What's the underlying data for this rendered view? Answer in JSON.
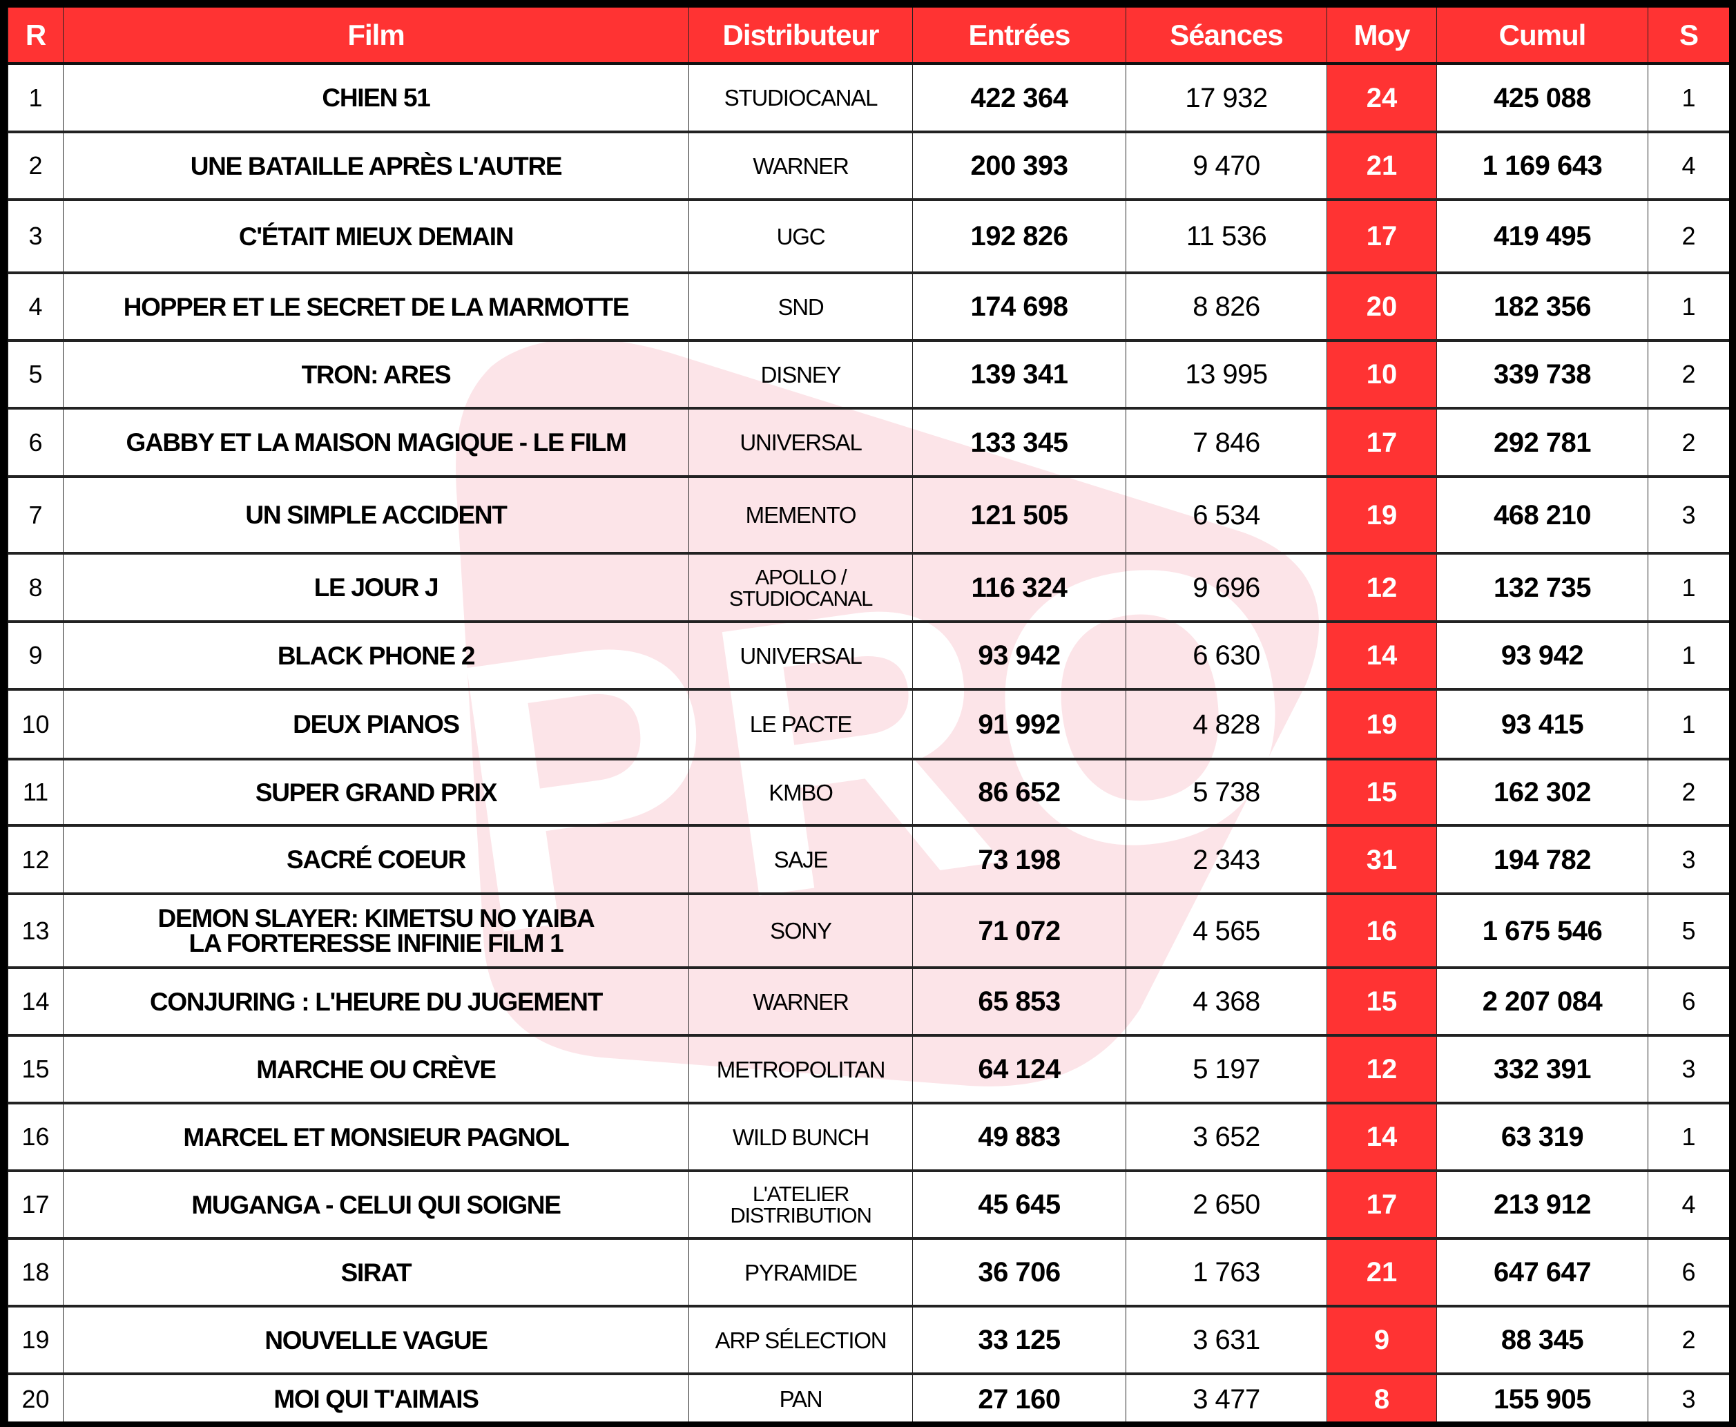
{
  "colors": {
    "accent": "#ff3333",
    "watermark": "#fce4e8",
    "border": "#000000"
  },
  "watermark_text": "PRO",
  "headers": {
    "rank": "R",
    "film": "Film",
    "distributor": "Distributeur",
    "entries": "Entrées",
    "sessions": "Séances",
    "average": "Moy",
    "cumulative": "Cumul",
    "weeks": "S"
  },
  "rows": [
    {
      "rank": "1",
      "film": "CHIEN 51",
      "distributor": "STUDIOCANAL",
      "entries": "422 364",
      "sessions": "17 932",
      "average": "24",
      "cumulative": "425 088",
      "weeks": "1"
    },
    {
      "rank": "2",
      "film": "UNE BATAILLE APRÈS L'AUTRE",
      "distributor": "WARNER",
      "entries": "200 393",
      "sessions": "9 470",
      "average": "21",
      "cumulative": "1 169 643",
      "weeks": "4"
    },
    {
      "rank": "3",
      "film": "C'ÉTAIT MIEUX DEMAIN",
      "distributor": "UGC",
      "entries": "192 826",
      "sessions": "11 536",
      "average": "17",
      "cumulative": "419 495",
      "weeks": "2"
    },
    {
      "rank": "4",
      "film": "HOPPER ET LE SECRET DE LA MARMOTTE",
      "distributor": "SND",
      "entries": "174 698",
      "sessions": "8 826",
      "average": "20",
      "cumulative": "182 356",
      "weeks": "1"
    },
    {
      "rank": "5",
      "film": "TRON: ARES",
      "distributor": "DISNEY",
      "entries": "139 341",
      "sessions": "13 995",
      "average": "10",
      "cumulative": "339 738",
      "weeks": "2"
    },
    {
      "rank": "6",
      "film": "GABBY ET LA MAISON MAGIQUE - LE FILM",
      "distributor": "UNIVERSAL",
      "entries": "133 345",
      "sessions": "7 846",
      "average": "17",
      "cumulative": "292 781",
      "weeks": "2"
    },
    {
      "rank": "7",
      "film": "UN SIMPLE ACCIDENT",
      "distributor": "MEMENTO",
      "entries": "121 505",
      "sessions": "6 534",
      "average": "19",
      "cumulative": "468 210",
      "weeks": "3"
    },
    {
      "rank": "8",
      "film": "LE JOUR J",
      "distributor": "APOLLO / STUDIOCANAL",
      "entries": "116 324",
      "sessions": "9 696",
      "average": "12",
      "cumulative": "132 735",
      "weeks": "1"
    },
    {
      "rank": "9",
      "film": "BLACK PHONE 2",
      "distributor": "UNIVERSAL",
      "entries": "93 942",
      "sessions": "6 630",
      "average": "14",
      "cumulative": "93 942",
      "weeks": "1"
    },
    {
      "rank": "10",
      "film": "DEUX PIANOS",
      "distributor": "LE PACTE",
      "entries": "91 992",
      "sessions": "4 828",
      "average": "19",
      "cumulative": "93 415",
      "weeks": "1"
    },
    {
      "rank": "11",
      "film": "SUPER GRAND PRIX",
      "distributor": "KMBO",
      "entries": "86 652",
      "sessions": "5 738",
      "average": "15",
      "cumulative": "162 302",
      "weeks": "2"
    },
    {
      "rank": "12",
      "film": "SACRÉ COEUR",
      "distributor": "SAJE",
      "entries": "73 198",
      "sessions": "2 343",
      "average": "31",
      "cumulative": "194 782",
      "weeks": "3"
    },
    {
      "rank": "13",
      "film": "DEMON SLAYER: KIMETSU NO YAIBA LA FORTERESSE INFINIE FILM 1",
      "distributor": "SONY",
      "entries": "71 072",
      "sessions": "4 565",
      "average": "16",
      "cumulative": "1 675 546",
      "weeks": "5"
    },
    {
      "rank": "14",
      "film": "CONJURING : L'HEURE DU JUGEMENT",
      "distributor": "WARNER",
      "entries": "65 853",
      "sessions": "4 368",
      "average": "15",
      "cumulative": "2 207 084",
      "weeks": "6"
    },
    {
      "rank": "15",
      "film": "MARCHE OU CRÈVE",
      "distributor": "METROPOLITAN",
      "entries": "64 124",
      "sessions": "5 197",
      "average": "12",
      "cumulative": "332 391",
      "weeks": "3"
    },
    {
      "rank": "16",
      "film": "MARCEL ET MONSIEUR PAGNOL",
      "distributor": "WILD BUNCH",
      "entries": "49 883",
      "sessions": "3 652",
      "average": "14",
      "cumulative": "63 319",
      "weeks": "1"
    },
    {
      "rank": "17",
      "film": "MUGANGA - CELUI QUI SOIGNE",
      "distributor": "L'ATELIER DISTRIBUTION",
      "entries": "45 645",
      "sessions": "2 650",
      "average": "17",
      "cumulative": "213 912",
      "weeks": "4"
    },
    {
      "rank": "18",
      "film": "SIRAT",
      "distributor": "PYRAMIDE",
      "entries": "36 706",
      "sessions": "1 763",
      "average": "21",
      "cumulative": "647 647",
      "weeks": "6"
    },
    {
      "rank": "19",
      "film": "NOUVELLE VAGUE",
      "distributor": "ARP SÉLECTION",
      "entries": "33 125",
      "sessions": "3 631",
      "average": "9",
      "cumulative": "88 345",
      "weeks": "2"
    },
    {
      "rank": "20",
      "film": "MOI QUI T'AIMAIS",
      "distributor": "PAN",
      "entries": "27 160",
      "sessions": "3 477",
      "average": "8",
      "cumulative": "155 905",
      "weeks": "3"
    }
  ]
}
